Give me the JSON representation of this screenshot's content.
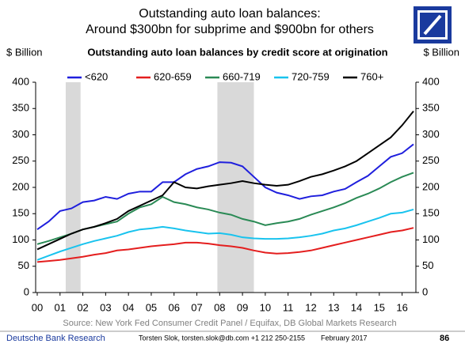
{
  "chart_data": {
    "type": "line",
    "title_line1": "Outstanding auto loan balances:",
    "title_line2": "Around $300bn for subprime and $900bn for others",
    "subtitle": "Outstanding auto loan balances by credit score at origination",
    "ylabel": "$ Billion",
    "y2label": "$ Billion",
    "x": [
      0,
      0.5,
      1,
      1.5,
      2,
      2.5,
      3,
      3.5,
      4,
      4.5,
      5,
      5.5,
      6,
      6.5,
      7,
      7.5,
      8,
      8.5,
      9,
      9.5,
      10,
      10.5,
      11,
      11.5,
      12,
      12.5,
      13,
      13.5,
      14,
      14.5,
      15,
      15.5,
      16,
      16.5
    ],
    "series": [
      {
        "name": "<620",
        "color": "#1f1fdd",
        "values": [
          120,
          135,
          155,
          160,
          172,
          175,
          182,
          178,
          188,
          192,
          192,
          210,
          210,
          225,
          235,
          240,
          248,
          247,
          240,
          220,
          200,
          190,
          185,
          178,
          183,
          185,
          192,
          197,
          210,
          222,
          240,
          258,
          265,
          282
        ]
      },
      {
        "name": "620-659",
        "color": "#e41e1e",
        "values": [
          58,
          60,
          62,
          65,
          68,
          72,
          75,
          80,
          82,
          85,
          88,
          90,
          92,
          95,
          95,
          93,
          90,
          88,
          85,
          80,
          76,
          74,
          75,
          77,
          80,
          85,
          90,
          95,
          100,
          105,
          110,
          115,
          118,
          123
        ]
      },
      {
        "name": "660-719",
        "color": "#2a8a55",
        "values": [
          92,
          98,
          105,
          112,
          120,
          125,
          130,
          135,
          150,
          162,
          168,
          182,
          172,
          168,
          162,
          158,
          152,
          148,
          140,
          135,
          128,
          132,
          135,
          140,
          148,
          155,
          162,
          170,
          180,
          188,
          198,
          210,
          220,
          228
        ]
      },
      {
        "name": "720-759",
        "color": "#19c3ee",
        "values": [
          62,
          70,
          78,
          85,
          92,
          98,
          103,
          108,
          115,
          120,
          122,
          125,
          122,
          118,
          115,
          112,
          113,
          110,
          105,
          103,
          102,
          102,
          103,
          105,
          108,
          112,
          118,
          122,
          128,
          135,
          142,
          150,
          152,
          158
        ]
      },
      {
        "name": "760+",
        "color": "#000000",
        "values": [
          82,
          92,
          102,
          112,
          120,
          125,
          132,
          140,
          155,
          165,
          175,
          185,
          210,
          200,
          198,
          202,
          205,
          208,
          212,
          208,
          205,
          203,
          205,
          212,
          220,
          225,
          232,
          240,
          250,
          265,
          280,
          295,
          318,
          345
        ]
      }
    ],
    "shaded_periods": [
      [
        1.25,
        1.9
      ],
      [
        7.9,
        9.5
      ]
    ],
    "shade_color": "#d9d9d9",
    "xlim": [
      0,
      16.5
    ],
    "xticks": [
      {
        "value": 0,
        "label": "00"
      },
      {
        "value": 1,
        "label": "01"
      },
      {
        "value": 2,
        "label": "02"
      },
      {
        "value": 3,
        "label": "03"
      },
      {
        "value": 4,
        "label": "04"
      },
      {
        "value": 5,
        "label": "05"
      },
      {
        "value": 6,
        "label": "06"
      },
      {
        "value": 7,
        "label": "07"
      },
      {
        "value": 8,
        "label": "08"
      },
      {
        "value": 9,
        "label": "09"
      },
      10,
      11,
      12,
      13,
      14,
      15,
      16
    ],
    "ylim": [
      0,
      400
    ],
    "yticks": [
      0,
      50,
      100,
      150,
      200,
      250,
      300,
      350,
      400
    ],
    "y2lim": [
      0,
      400
    ],
    "y2ticks": [
      0,
      50,
      100,
      150,
      200,
      250,
      300,
      350,
      400
    ],
    "source": "Source:  New York Fed Consumer Credit Panel / Equifax,  DB Global Markets Research"
  },
  "footer": {
    "org": "Deutsche Bank Research",
    "contact": "Torsten Slok, torsten.slok@db.com  +1 212 250-2155",
    "date": "February 2017",
    "page": "86"
  }
}
